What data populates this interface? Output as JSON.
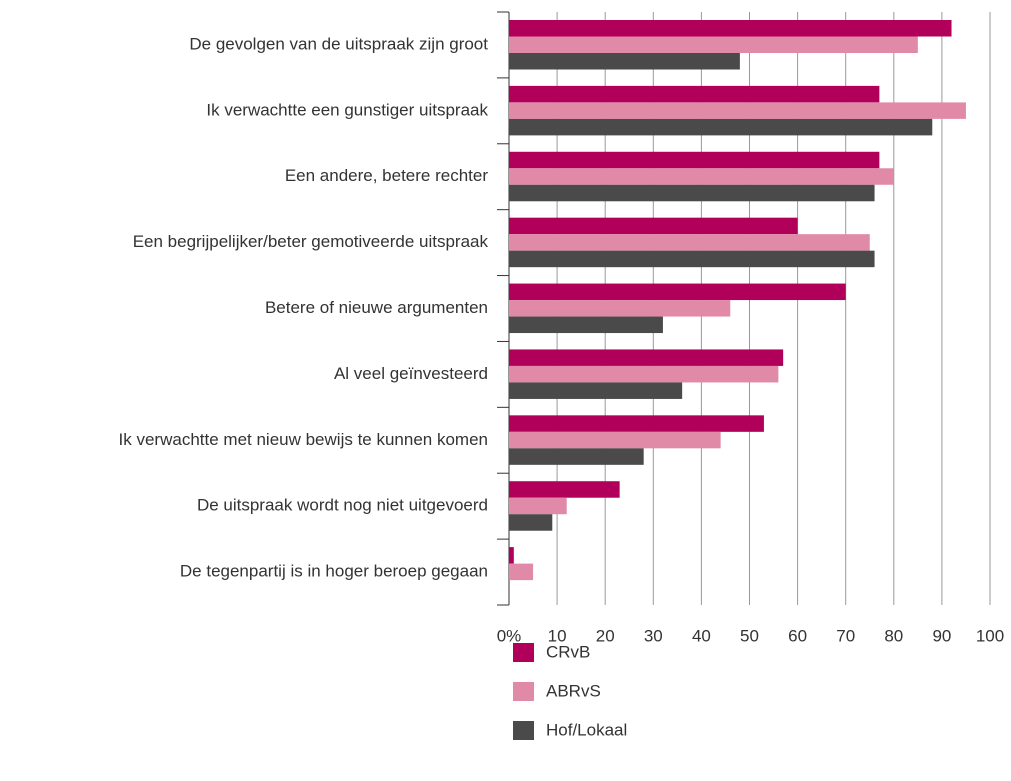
{
  "chart_data": {
    "type": "barh",
    "categories": [
      "De gevolgen van de uitspraak zijn groot",
      "Ik verwachtte een gunstiger uitspraak",
      "Een andere, betere rechter",
      "Een begrijpelijker/beter gemotiveerde uitspraak",
      "Betere of nieuwe argumenten",
      "Al veel geïnvesteerd",
      "Ik verwachtte met nieuw bewijs te kunnen komen",
      "De uitspraak wordt nog niet uitgevoerd",
      "De tegenpartij is in hoger beroep gegaan"
    ],
    "series": [
      {
        "name": "CRvB",
        "color": "#b0005a",
        "values": [
          92,
          77,
          77,
          60,
          70,
          57,
          53,
          23,
          1
        ]
      },
      {
        "name": "ABRvS",
        "color": "#e08aa8",
        "values": [
          85,
          95,
          80,
          75,
          46,
          56,
          44,
          12,
          5
        ]
      },
      {
        "name": "Hof/Lokaal",
        "color": "#4a4a4a",
        "values": [
          48,
          88,
          76,
          76,
          32,
          36,
          28,
          9,
          null
        ]
      }
    ],
    "xlim": [
      0,
      100
    ],
    "xticks": [
      {
        "value": 0,
        "label": "0%"
      },
      10,
      20,
      30,
      40,
      50,
      60,
      70,
      80,
      90,
      100
    ],
    "grid": true
  }
}
